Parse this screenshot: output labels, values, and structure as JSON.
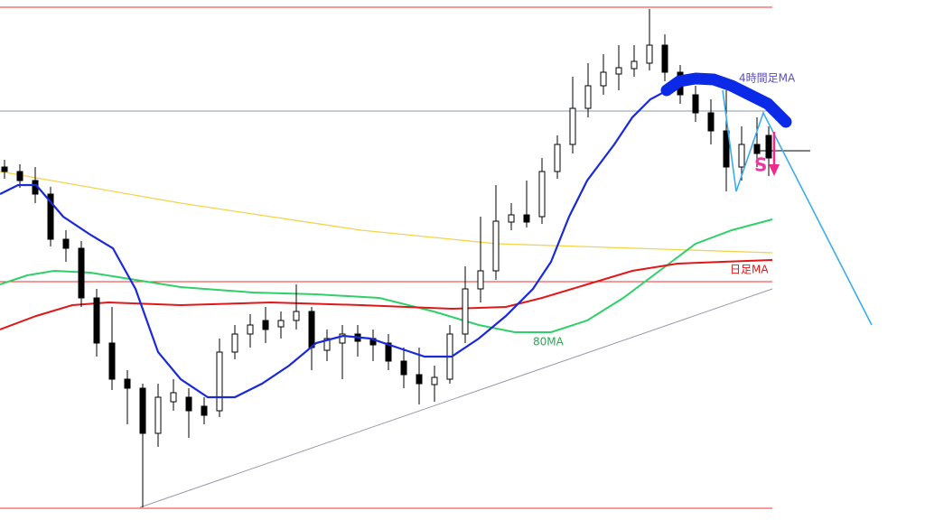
{
  "annotations": {
    "ma_4h": "4時間足MA",
    "ma_daily": "日足MA",
    "ma_80": "80MA",
    "signal": "S"
  }
}
